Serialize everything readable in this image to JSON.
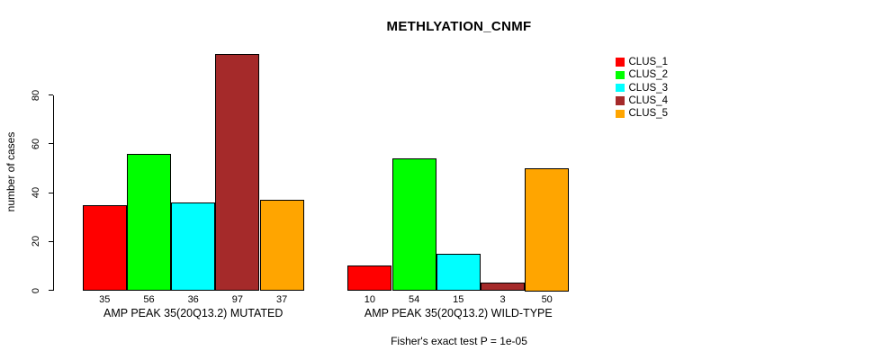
{
  "chart_data": {
    "type": "bar",
    "title": "METHLYATION_CNMF",
    "ylabel": "number of cases",
    "xlabel": "",
    "ylim": [
      0,
      100
    ],
    "yticks": [
      0,
      20,
      40,
      60,
      80
    ],
    "grid": false,
    "legend_position": "right-outside",
    "series": [
      "CLUS_1",
      "CLUS_2",
      "CLUS_3",
      "CLUS_4",
      "CLUS_5"
    ],
    "colors": [
      "#FF0000",
      "#00FF00",
      "#00FFFF",
      "#A52A2A",
      "#FFA500"
    ],
    "groups": [
      {
        "label": "AMP PEAK 35(20Q13.2) MUTATED",
        "values": [
          35,
          56,
          36,
          97,
          37
        ]
      },
      {
        "label": "AMP PEAK 35(20Q13.2) WILD-TYPE",
        "values": [
          10,
          54,
          15,
          3,
          50
        ]
      }
    ],
    "bar_value_labels_shown": true,
    "annotation": "Fisher's exact test P = 1e-05"
  },
  "legend": {
    "items": [
      {
        "label": "CLUS_1",
        "color": "#FF0000"
      },
      {
        "label": "CLUS_2",
        "color": "#00FF00"
      },
      {
        "label": "CLUS_3",
        "color": "#00FFFF"
      },
      {
        "label": "CLUS_4",
        "color": "#A52A2A"
      },
      {
        "label": "CLUS_5",
        "color": "#FFA500"
      }
    ]
  }
}
